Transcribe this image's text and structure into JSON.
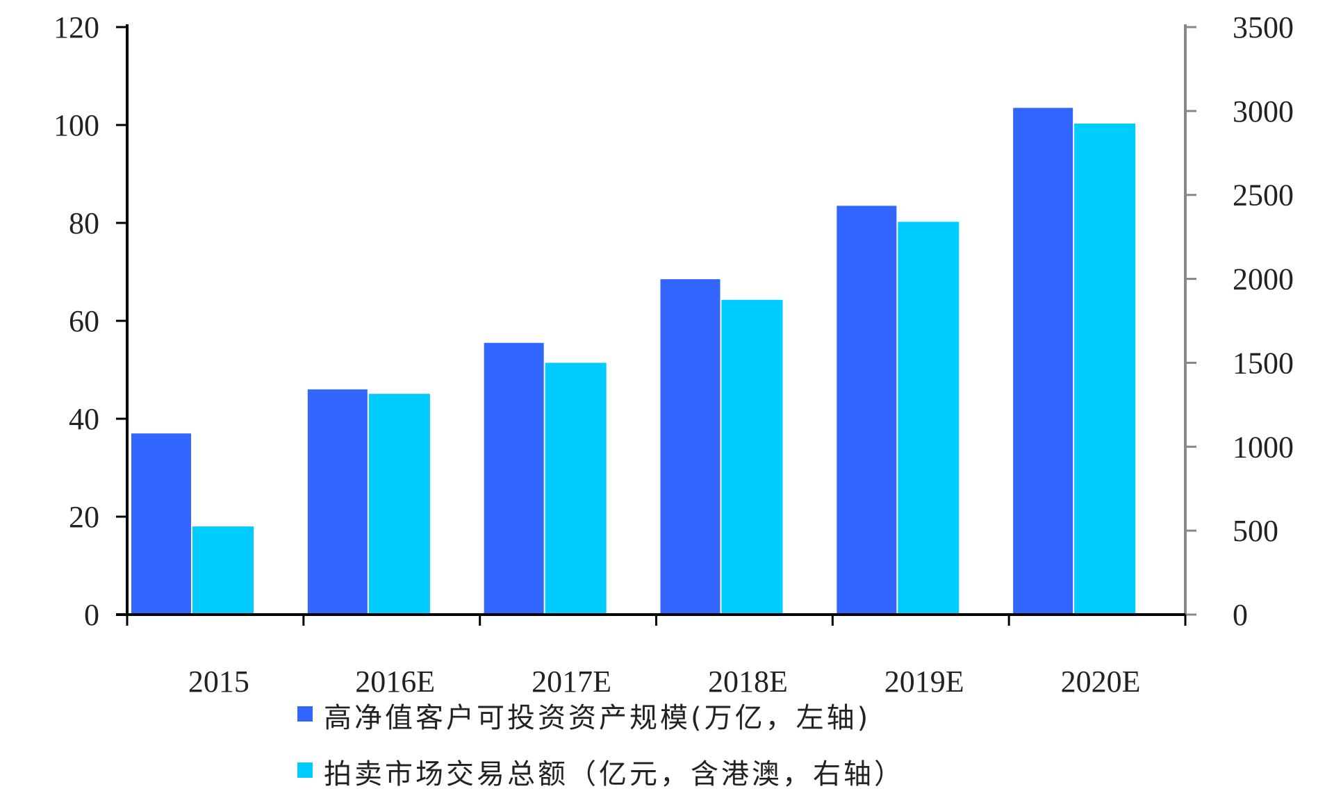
{
  "chart_data": {
    "type": "bar",
    "categories": [
      "2015",
      "2016E",
      "2017E",
      "2018E",
      "2019E",
      "2020E"
    ],
    "series": [
      {
        "name": "高净值客户可投资资产规模(万亿，左轴)",
        "axis": "left",
        "color": "#3366ff",
        "values": [
          37,
          46,
          55.5,
          68.5,
          83.5,
          103.5
        ]
      },
      {
        "name": "拍卖市场交易总额（亿元，含港澳，右轴）",
        "axis": "right",
        "color": "#00ccff",
        "values": [
          525,
          1315,
          1500,
          1875,
          2340,
          2925
        ]
      }
    ],
    "y_left": {
      "min": 0,
      "max": 120,
      "ticks": [
        "0",
        "20",
        "40",
        "60",
        "80",
        "100",
        "120"
      ]
    },
    "y_right": {
      "min": 0,
      "max": 3500,
      "ticks": [
        "0",
        "500",
        "1000",
        "1500",
        "2000",
        "2500",
        "3000",
        "3500"
      ]
    },
    "title": "",
    "xlabel": "",
    "ylabel": "",
    "grid": false,
    "legend_position": "bottom"
  }
}
